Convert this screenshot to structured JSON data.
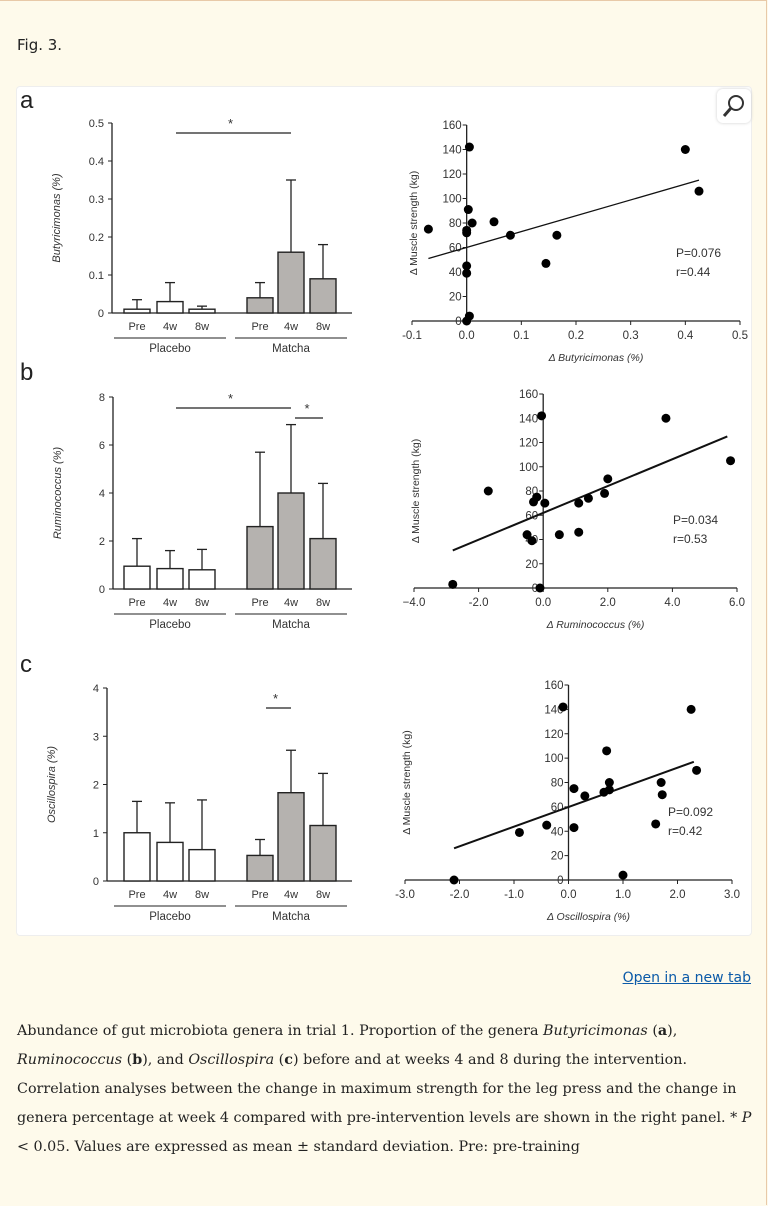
{
  "figure_label": "Fig. 3.",
  "open_link": "Open in a new tab",
  "magnifier_icon": "magnifier-zoom-icon",
  "caption": [
    {
      "t": "Abundance of gut microbiota genera in trial 1. Proportion of the genera ",
      "s": "n"
    },
    {
      "t": "Butyricimonas",
      "s": "i"
    },
    {
      "t": " (",
      "s": "n"
    },
    {
      "t": "a",
      "s": "b"
    },
    {
      "t": "), ",
      "s": "n"
    },
    {
      "t": "Ruminococcus",
      "s": "i"
    },
    {
      "t": " (",
      "s": "n"
    },
    {
      "t": "b",
      "s": "b"
    },
    {
      "t": "), and ",
      "s": "n"
    },
    {
      "t": "Oscillospira",
      "s": "i"
    },
    {
      "t": " (",
      "s": "n"
    },
    {
      "t": "c",
      "s": "b"
    },
    {
      "t": ") before and at weeks 4 and 8 during the intervention. Correlation analyses between the change in maximum strength for the leg press and the change in genera percentage at week 4 compared with pre-intervention levels are shown in the right panel. * ",
      "s": "n"
    },
    {
      "t": "P",
      "s": "i"
    },
    {
      "t": " < 0.05. Values are expressed as mean ± standard deviation. Pre: pre-training",
      "s": "n"
    }
  ],
  "colors": {
    "placebo_bar": "#ffffff",
    "matcha_bar": "#b5b2af",
    "points": "#000000",
    "link": "#0b5aa8",
    "background": "#fefaeb"
  },
  "chart_data": [
    {
      "panel": "a",
      "type": "bar",
      "ylabel": "Butyricimonas (%)",
      "ylim": [
        0,
        0.5
      ],
      "yticks": [
        "0",
        "0.1",
        "0.2",
        "0.3",
        "0.4",
        "0.5"
      ],
      "groups": [
        "Placebo",
        "Matcha"
      ],
      "categories": [
        "Pre",
        "4w",
        "8w"
      ],
      "series": [
        {
          "name": "Placebo",
          "values": [
            0.01,
            0.03,
            0.01
          ],
          "sd": [
            0.025,
            0.05,
            0.008
          ]
        },
        {
          "name": "Matcha",
          "values": [
            0.04,
            0.16,
            0.09
          ],
          "sd": [
            0.04,
            0.19,
            0.09
          ]
        }
      ],
      "significance": [
        {
          "from": "Placebo 4w",
          "to": "Matcha 4w",
          "label": "*"
        }
      ]
    },
    {
      "panel": "a",
      "type": "scatter",
      "xlabel": "Δ Butyricimonas (%)",
      "ylabel": "Δ Muscle strength (kg)",
      "xlim": [
        -0.1,
        0.5
      ],
      "ylim": [
        0,
        160
      ],
      "xticks": [
        "-0.1",
        "0.0",
        "0.1",
        "0.2",
        "0.3",
        "0.4",
        "0.5"
      ],
      "yticks": [
        "0",
        "20",
        "40",
        "60",
        "80",
        "100",
        "120",
        "140",
        "160"
      ],
      "points": [
        [
          -0.07,
          75
        ],
        [
          0,
          72
        ],
        [
          0,
          74
        ],
        [
          0.003,
          91
        ],
        [
          0.005,
          142
        ],
        [
          0.01,
          80
        ],
        [
          0,
          45
        ],
        [
          0,
          39
        ],
        [
          0,
          0
        ],
        [
          0.005,
          4
        ],
        [
          0.05,
          81
        ],
        [
          0.08,
          70
        ],
        [
          0.145,
          47
        ],
        [
          0.165,
          70
        ],
        [
          0.4,
          140
        ],
        [
          0.425,
          106
        ]
      ],
      "fit": [
        [
          -0.07,
          51
        ],
        [
          0.425,
          115
        ]
      ],
      "annotations": [
        "P=0.076",
        "r=0.44"
      ]
    },
    {
      "panel": "b",
      "type": "bar",
      "ylabel": "Ruminococcus (%)",
      "ylim": [
        0,
        8
      ],
      "yticks": [
        "0",
        "2",
        "4",
        "6",
        "8"
      ],
      "groups": [
        "Placebo",
        "Matcha"
      ],
      "categories": [
        "Pre",
        "4w",
        "8w"
      ],
      "series": [
        {
          "name": "Placebo",
          "values": [
            0.95,
            0.85,
            0.8
          ],
          "sd": [
            1.15,
            0.75,
            0.85
          ]
        },
        {
          "name": "Matcha",
          "values": [
            2.6,
            4.0,
            2.1
          ],
          "sd": [
            3.1,
            2.85,
            2.3
          ]
        }
      ],
      "significance": [
        {
          "from": "Placebo 4w",
          "to": "Matcha 4w",
          "label": "*"
        },
        {
          "from": "Matcha 4w",
          "to": "Matcha 8w",
          "label": "*"
        }
      ]
    },
    {
      "panel": "b",
      "type": "scatter",
      "xlabel": "Δ Ruminococcus (%)",
      "ylabel": "Δ Muscle strength (kg)",
      "xlim": [
        -4,
        6
      ],
      "ylim": [
        0,
        160
      ],
      "xticks": [
        "−4.0",
        "-2.0",
        "0.0",
        "2.0",
        "4.0",
        "6.0"
      ],
      "yticks": [
        "0",
        "20",
        "40",
        "60",
        "80",
        "100",
        "120",
        "140",
        "160"
      ],
      "points": [
        [
          -2.8,
          3
        ],
        [
          -1.7,
          80
        ],
        [
          -0.2,
          75
        ],
        [
          -0.3,
          71
        ],
        [
          -0.5,
          44
        ],
        [
          -0.35,
          39
        ],
        [
          -0.1,
          0
        ],
        [
          -0.05,
          142
        ],
        [
          0.05,
          70
        ],
        [
          0.5,
          44
        ],
        [
          1.1,
          70
        ],
        [
          1.1,
          46
        ],
        [
          1.4,
          74
        ],
        [
          1.9,
          78
        ],
        [
          2.0,
          90
        ],
        [
          3.8,
          140
        ],
        [
          5.8,
          105
        ]
      ],
      "fit": [
        [
          -2.8,
          31
        ],
        [
          5.7,
          125
        ]
      ],
      "annotations": [
        "P=0.034",
        "r=0.53"
      ]
    },
    {
      "panel": "c",
      "type": "bar",
      "ylabel": "Oscillospira (%)",
      "ylim": [
        0,
        4
      ],
      "yticks": [
        "0",
        "1",
        "2",
        "3",
        "4"
      ],
      "groups": [
        "Placebo",
        "Matcha"
      ],
      "categories": [
        "Pre",
        "4w",
        "8w"
      ],
      "series": [
        {
          "name": "Placebo",
          "values": [
            1.0,
            0.8,
            0.65
          ],
          "sd": [
            0.65,
            0.82,
            1.03
          ]
        },
        {
          "name": "Matcha",
          "values": [
            0.53,
            1.83,
            1.15
          ],
          "sd": [
            0.33,
            0.88,
            1.08
          ]
        }
      ],
      "significance": [
        {
          "from": "Matcha Pre",
          "to": "Matcha 4w",
          "label": "*"
        }
      ]
    },
    {
      "panel": "c",
      "type": "scatter",
      "xlabel": "Δ Oscillospira (%)",
      "ylabel": "Δ Muscle strength (kg)",
      "xlim": [
        -3,
        3
      ],
      "ylim": [
        0,
        160
      ],
      "xticks": [
        "-3.0",
        "-2.0",
        "-1.0",
        "0.0",
        "1.0",
        "2.0",
        "3.0"
      ],
      "yticks": [
        "0",
        "20",
        "40",
        "60",
        "80",
        "100",
        "120",
        "140",
        "160"
      ],
      "points": [
        [
          -2.1,
          0
        ],
        [
          -0.9,
          39
        ],
        [
          -0.4,
          45
        ],
        [
          -0.1,
          142
        ],
        [
          0.1,
          75
        ],
        [
          0.1,
          43
        ],
        [
          0.3,
          69
        ],
        [
          0.65,
          72
        ],
        [
          0.7,
          106
        ],
        [
          0.75,
          80
        ],
        [
          0.75,
          74
        ],
        [
          1.0,
          4
        ],
        [
          1.6,
          46
        ],
        [
          1.7,
          80
        ],
        [
          1.72,
          70
        ],
        [
          2.25,
          140
        ],
        [
          2.35,
          90
        ]
      ],
      "fit": [
        [
          -2.1,
          26
        ],
        [
          2.3,
          97
        ]
      ],
      "annotations": [
        "P=0.092",
        "r=0.42"
      ]
    }
  ]
}
